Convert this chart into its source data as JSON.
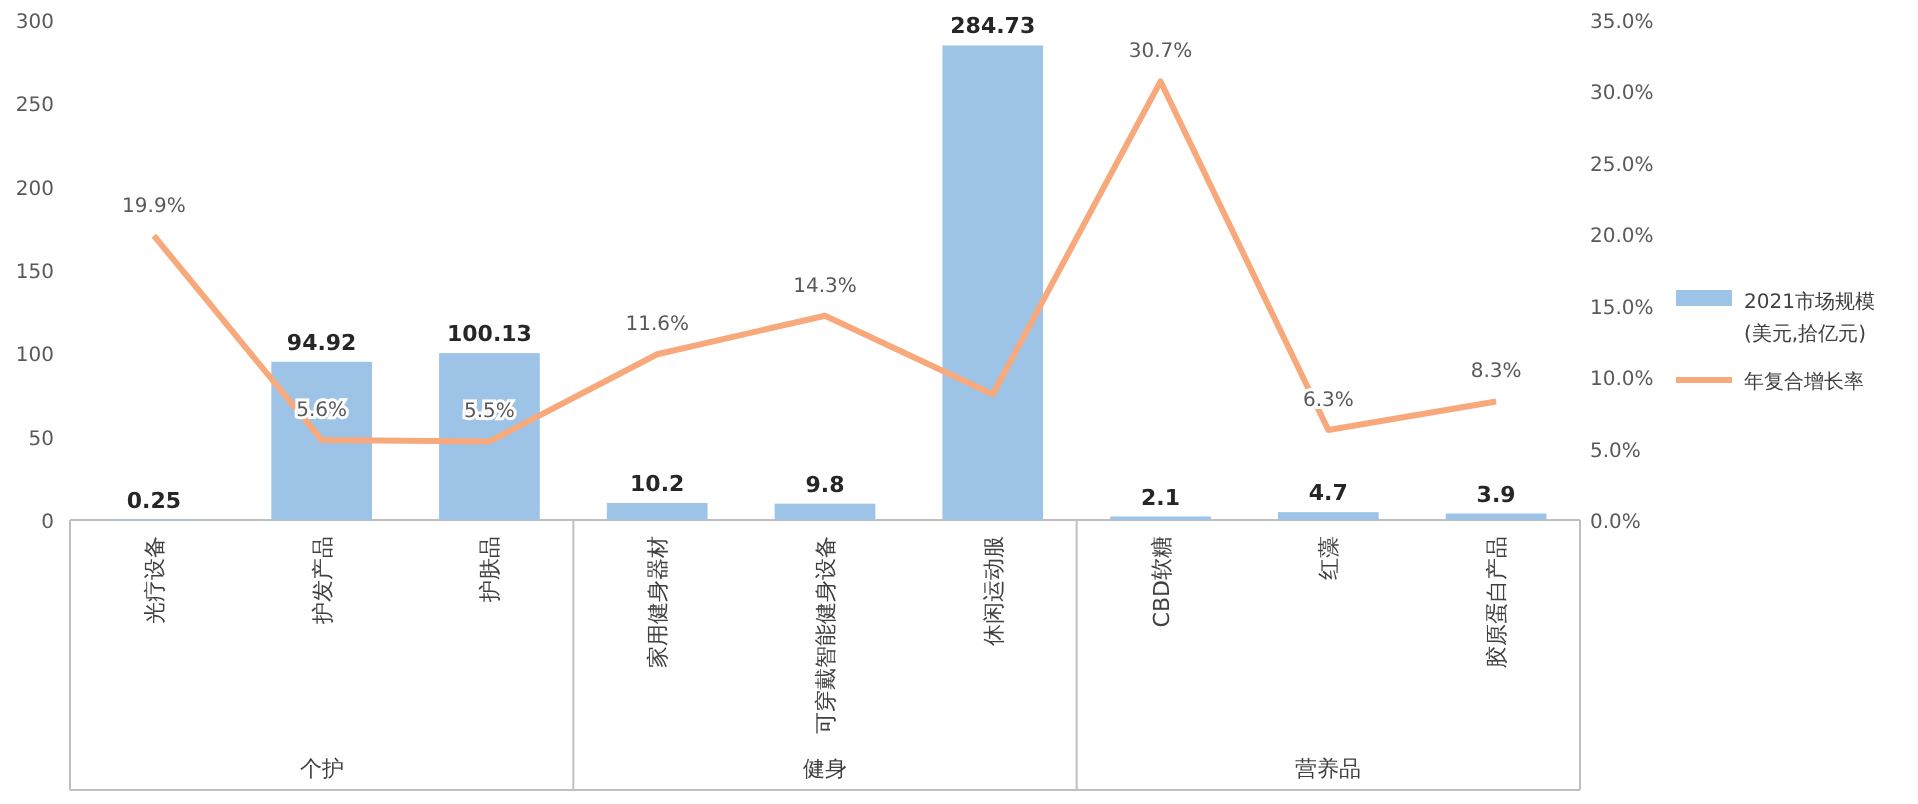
{
  "chart_data": {
    "type": "bar",
    "categories": [
      "光疗设备",
      "护发产品",
      "护肤品",
      "家用健身器材",
      "可穿戴智能健身设备",
      "休闲运动服",
      "CBD软糖",
      "红藻",
      "胶原蛋白产品"
    ],
    "series": [
      {
        "name": "2021市场规模(美元,拾亿元)",
        "color": "#9dc3e6",
        "values": [
          0.25,
          94.92,
          100.13,
          10.2,
          9.8,
          284.73,
          2.1,
          4.7,
          3.9
        ],
        "value_labels": [
          "0.25",
          "94.92",
          "100.13",
          "10.2",
          "9.8",
          "284.73",
          "2.1",
          "4.7",
          "3.9"
        ]
      },
      {
        "name": "年复合增长率",
        "type": "line",
        "axis": "y2",
        "color": "#f8a97c",
        "values": [
          19.9,
          5.6,
          5.5,
          11.6,
          14.3,
          8.8,
          30.7,
          6.3,
          8.3
        ],
        "value_labels": [
          "19.9%",
          "5.6%",
          "5.5%",
          "11.6%",
          "14.3%",
          null,
          "30.7%",
          "6.3%",
          "8.3%"
        ]
      }
    ],
    "ylim": [
      0,
      300
    ],
    "yticks": [
      0,
      50,
      100,
      150,
      200,
      250,
      300
    ],
    "y2lim": [
      0,
      35
    ],
    "y2ticks": [
      {
        "value": 0,
        "label": "0.0%"
      },
      {
        "value": 5,
        "label": "5.0%"
      },
      {
        "value": 10,
        "label": "10.0%"
      },
      {
        "value": 15,
        "label": "15.0%"
      },
      {
        "value": 20,
        "label": "20.0%"
      },
      {
        "value": 25,
        "label": "25.0%"
      },
      {
        "value": 30,
        "label": "30.0%"
      },
      {
        "value": 35,
        "label": "35.0%"
      }
    ],
    "annotations": [
      "个护",
      "健身",
      "营养品"
    ],
    "legend": "right",
    "grid": false
  }
}
